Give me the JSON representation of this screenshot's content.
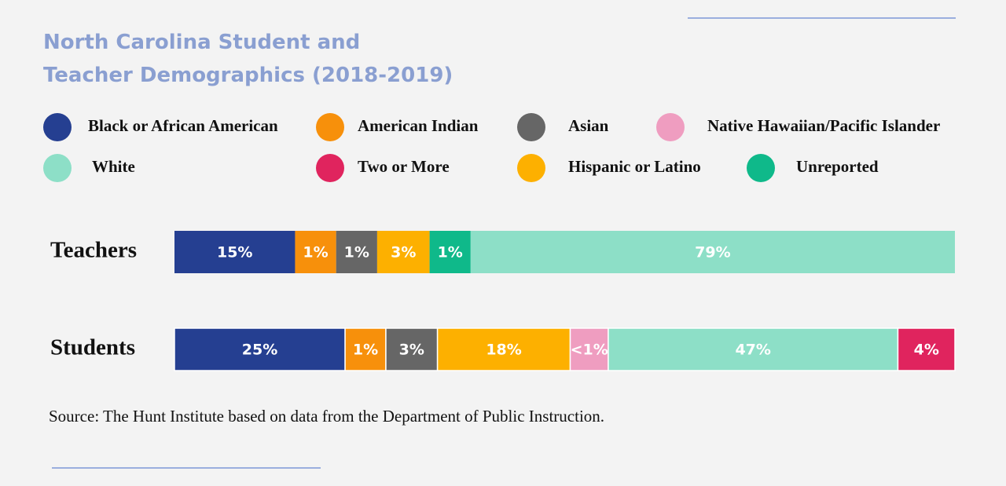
{
  "chart_data": {
    "type": "stacked-bar",
    "title": "North Carolina Student and Teacher Demographics (2018-2019)",
    "categories": [
      "Teachers",
      "Students"
    ],
    "series": [
      {
        "name": "Black or African American",
        "color": "#253f91",
        "values": [
          15,
          25
        ],
        "value_labels": [
          "15%",
          "25%"
        ]
      },
      {
        "name": "American  Indian",
        "color": "#f7900b",
        "values": [
          1,
          1
        ],
        "value_labels": [
          "1%",
          "1%"
        ]
      },
      {
        "name": "Asian",
        "color": "#666666",
        "values": [
          1,
          3
        ],
        "value_labels": [
          "1%",
          "3%"
        ]
      },
      {
        "name": "Hispanic or Latino",
        "color": "#fdb000",
        "values": [
          3,
          18
        ],
        "value_labels": [
          "3%",
          "18%"
        ]
      },
      {
        "name": "Native Hawaiian/Pacific Islander",
        "color": "#ef9dc0",
        "values": [
          null,
          0.5
        ],
        "value_labels": [
          null,
          "<1%"
        ]
      },
      {
        "name": "Unreported",
        "color": "#0fb98a",
        "values": [
          1,
          null
        ],
        "value_labels": [
          "1%",
          null
        ]
      },
      {
        "name": "White",
        "color": "#8ddfc7",
        "values": [
          79,
          47
        ],
        "value_labels": [
          "79%",
          "47%"
        ]
      },
      {
        "name": "Two or More",
        "color": "#e0245e",
        "values": [
          null,
          4
        ],
        "value_labels": [
          null,
          "4%"
        ]
      }
    ],
    "source": "Source: The Hunt Institute based on data from the Department of Public Instruction."
  }
}
